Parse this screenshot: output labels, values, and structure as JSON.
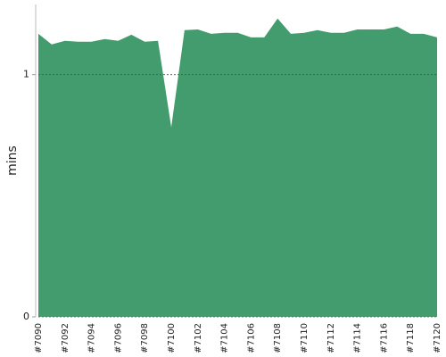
{
  "chart_data": {
    "type": "area",
    "y_label": "mins",
    "color": "#439c6e",
    "categories": [
      "#7090",
      null,
      "#7092",
      null,
      "#7094",
      null,
      "#7096",
      null,
      "#7098",
      null,
      "#7100",
      null,
      "#7102",
      null,
      "#7104",
      null,
      "#7106",
      null,
      "#7108",
      null,
      "#7110",
      null,
      "#7112",
      null,
      "#7114",
      null,
      "#7116",
      null,
      "#7118",
      null,
      "#7120"
    ],
    "values": [
      1.169,
      1.125,
      1.14,
      1.136,
      1.136,
      1.147,
      1.14,
      1.165,
      1.136,
      1.14,
      0.783,
      1.184,
      1.187,
      1.169,
      1.173,
      1.173,
      1.154,
      1.154,
      1.232,
      1.169,
      1.173,
      1.184,
      1.173,
      1.173,
      1.187,
      1.187,
      1.187,
      1.199,
      1.169,
      1.169,
      1.154
    ],
    "ylim": [
      0,
      1.29
    ],
    "yticks": [
      0,
      1
    ],
    "grid": true
  }
}
